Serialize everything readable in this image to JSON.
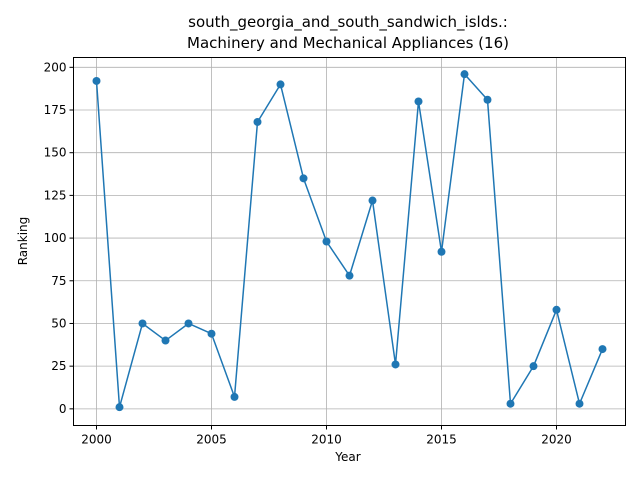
{
  "chart_data": {
    "type": "line",
    "title_line1": "south_georgia_and_south_sandwich_islds.:",
    "title_line2": "Machinery and Mechanical Appliances (16)",
    "xlabel": "Year",
    "ylabel": "Ranking",
    "xlim": [
      1999.0,
      2023.0
    ],
    "ylim": [
      -9.75,
      205.75
    ],
    "xticks": [
      2000,
      2005,
      2010,
      2015,
      2020
    ],
    "yticks": [
      0,
      25,
      50,
      75,
      100,
      125,
      150,
      175,
      200
    ],
    "grid": true,
    "line_color": "#1f77b4",
    "x": [
      2000,
      2001,
      2002,
      2003,
      2004,
      2005,
      2006,
      2007,
      2008,
      2009,
      2010,
      2011,
      2012,
      2013,
      2014,
      2015,
      2016,
      2017,
      2018,
      2019,
      2020,
      2021,
      2022
    ],
    "y": [
      192,
      1,
      50,
      40,
      50,
      44,
      7,
      168,
      190,
      135,
      98,
      78,
      122,
      26,
      180,
      92,
      196,
      181,
      3,
      25,
      58,
      3,
      35
    ]
  }
}
